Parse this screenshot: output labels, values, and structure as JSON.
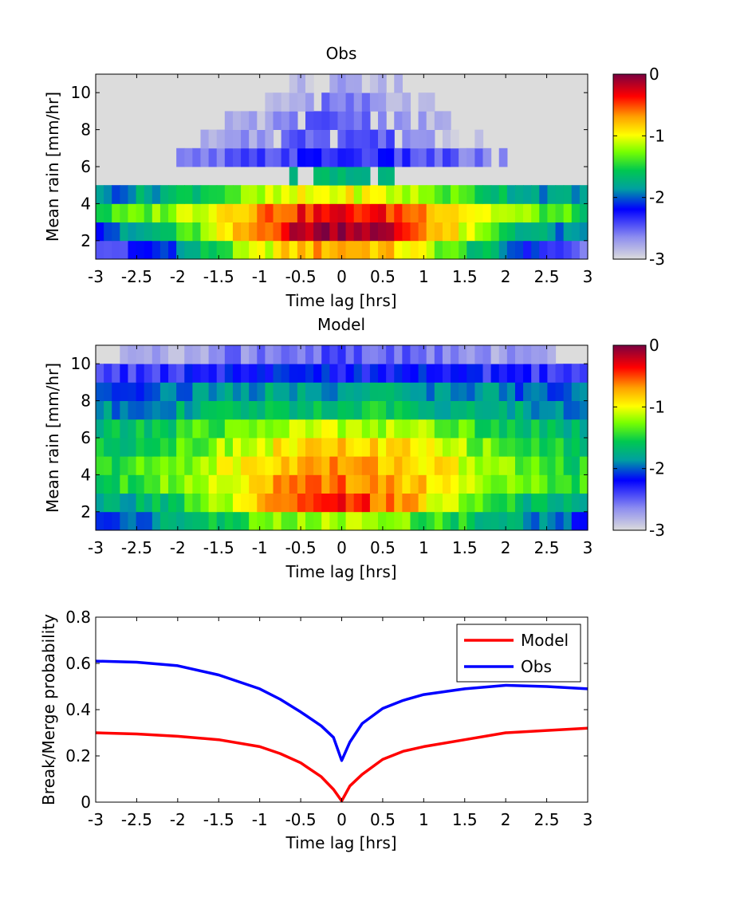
{
  "chart_data": [
    {
      "type": "heatmap",
      "title": "Obs",
      "xlabel": "Time lag [hrs]",
      "ylabel": "Mean rain [mm/hr]",
      "xlim": [
        -3,
        3
      ],
      "ylim": [
        1,
        11
      ],
      "xticks": [
        "-3",
        "-2.5",
        "-2",
        "-1.5",
        "-1",
        "-0.5",
        "0",
        "0.5",
        "1",
        "1.5",
        "2",
        "2.5",
        "3"
      ],
      "yticks": [
        "2",
        "4",
        "6",
        "8",
        "10"
      ],
      "colorbar": {
        "min": -3,
        "max": 0,
        "ticks": [
          "0",
          "-1",
          "-2",
          "-3"
        ]
      },
      "cols": 61,
      "rows": [
        {
          "y": 1.5,
          "peak": -0.7,
          "width": 1.6,
          "floor": -2.95,
          "sparse": 0
        },
        {
          "y": 2.5,
          "peak": -0.03,
          "width": 1.3,
          "floor": -2.2,
          "sparse": 0
        },
        {
          "y": 3.5,
          "peak": -0.35,
          "width": 1.5,
          "floor": -1.7,
          "sparse": 0
        },
        {
          "y": 4.5,
          "peak": -1.0,
          "width": 1.5,
          "floor": -2.1,
          "sparse": 0
        },
        {
          "y": 5.5,
          "peak": -1.8,
          "width": 1.8,
          "floor": -2.6,
          "sparse": 0.1
        },
        {
          "y": 6.5,
          "peak": -2.3,
          "width": 1.3,
          "floor": -2.9,
          "sparse": 1.6
        },
        {
          "y": 7.5,
          "peak": -2.4,
          "width": 0.8,
          "floor": -2.95,
          "sparse": 1.35
        },
        {
          "y": 8.5,
          "peak": -2.5,
          "width": 0.6,
          "floor": -2.95,
          "sparse": 1.0
        },
        {
          "y": 9.5,
          "peak": -2.6,
          "width": 0.4,
          "floor": -2.95,
          "sparse": 0.7
        },
        {
          "y": 10.5,
          "peak": -2.8,
          "width": 0.2,
          "floor": -2.95,
          "sparse": 0.25
        }
      ]
    },
    {
      "type": "heatmap",
      "title": "Model",
      "xlabel": "Time lag [hrs]",
      "ylabel": "Mean rain [mm/hr]",
      "xlim": [
        -3,
        3
      ],
      "ylim": [
        1,
        11
      ],
      "xticks": [
        "-3",
        "-2.5",
        "-2",
        "-1.5",
        "-1",
        "-0.5",
        "0",
        "0.5",
        "1",
        "1.5",
        "2",
        "2.5",
        "3"
      ],
      "yticks": [
        "2",
        "4",
        "6",
        "8",
        "10"
      ],
      "colorbar": {
        "min": -3,
        "max": 0,
        "ticks": [
          "0",
          "-1",
          "-2",
          "-3"
        ]
      },
      "cols": 61,
      "rows": [
        {
          "y": 1.5,
          "peak": -1.2,
          "width": 1.8,
          "floor": -2.4,
          "sparse": 0
        },
        {
          "y": 2.5,
          "peak": -0.45,
          "width": 1.2,
          "floor": -1.9,
          "sparse": 0
        },
        {
          "y": 3.5,
          "peak": -0.6,
          "width": 1.4,
          "floor": -1.6,
          "sparse": 0
        },
        {
          "y": 4.5,
          "peak": -0.7,
          "width": 1.5,
          "floor": -1.65,
          "sparse": 0
        },
        {
          "y": 5.5,
          "peak": -0.85,
          "width": 1.5,
          "floor": -1.75,
          "sparse": 0
        },
        {
          "y": 6.5,
          "peak": -1.1,
          "width": 1.6,
          "floor": -1.85,
          "sparse": 0
        },
        {
          "y": 7.5,
          "peak": -1.6,
          "width": 2.2,
          "floor": -2.15,
          "sparse": 0
        },
        {
          "y": 8.5,
          "peak": -1.8,
          "width": 2.5,
          "floor": -2.3,
          "sparse": 0
        },
        {
          "y": 9.5,
          "peak": -2.2,
          "width": 2.5,
          "floor": -2.6,
          "sparse": 0
        },
        {
          "y": 10.5,
          "peak": -2.5,
          "width": 1.6,
          "floor": -2.95,
          "sparse": 2.3
        }
      ]
    },
    {
      "type": "line",
      "title": "",
      "xlabel": "Time lag [hrs]",
      "ylabel": "Break/Merge probability",
      "xlim": [
        -3,
        3
      ],
      "ylim": [
        0,
        0.8
      ],
      "xticks": [
        "-3",
        "-2.5",
        "-2",
        "-1.5",
        "-1",
        "-0.5",
        "0",
        "0.5",
        "1",
        "1.5",
        "2",
        "2.5",
        "3"
      ],
      "yticks": [
        "0",
        "0.2",
        "0.4",
        "0.6",
        "0.8"
      ],
      "legend": "top-right",
      "series": [
        {
          "name": "Model",
          "color": "#ff0000",
          "x": [
            -3,
            -2.5,
            -2,
            -1.5,
            -1,
            -0.75,
            -0.5,
            -0.25,
            -0.1,
            0,
            0.1,
            0.25,
            0.5,
            0.75,
            1,
            1.5,
            2,
            2.5,
            3
          ],
          "y": [
            0.3,
            0.295,
            0.285,
            0.27,
            0.24,
            0.21,
            0.17,
            0.11,
            0.055,
            0.005,
            0.07,
            0.12,
            0.185,
            0.22,
            0.24,
            0.27,
            0.3,
            0.31,
            0.32
          ]
        },
        {
          "name": "Obs",
          "color": "#0000ff",
          "x": [
            -3,
            -2.5,
            -2,
            -1.5,
            -1,
            -0.75,
            -0.5,
            -0.25,
            -0.1,
            0,
            0.1,
            0.25,
            0.5,
            0.75,
            1,
            1.5,
            2,
            2.5,
            3
          ],
          "y": [
            0.61,
            0.605,
            0.59,
            0.55,
            0.49,
            0.445,
            0.39,
            0.33,
            0.28,
            0.18,
            0.26,
            0.34,
            0.405,
            0.44,
            0.465,
            0.49,
            0.505,
            0.5,
            0.49
          ]
        }
      ]
    }
  ]
}
